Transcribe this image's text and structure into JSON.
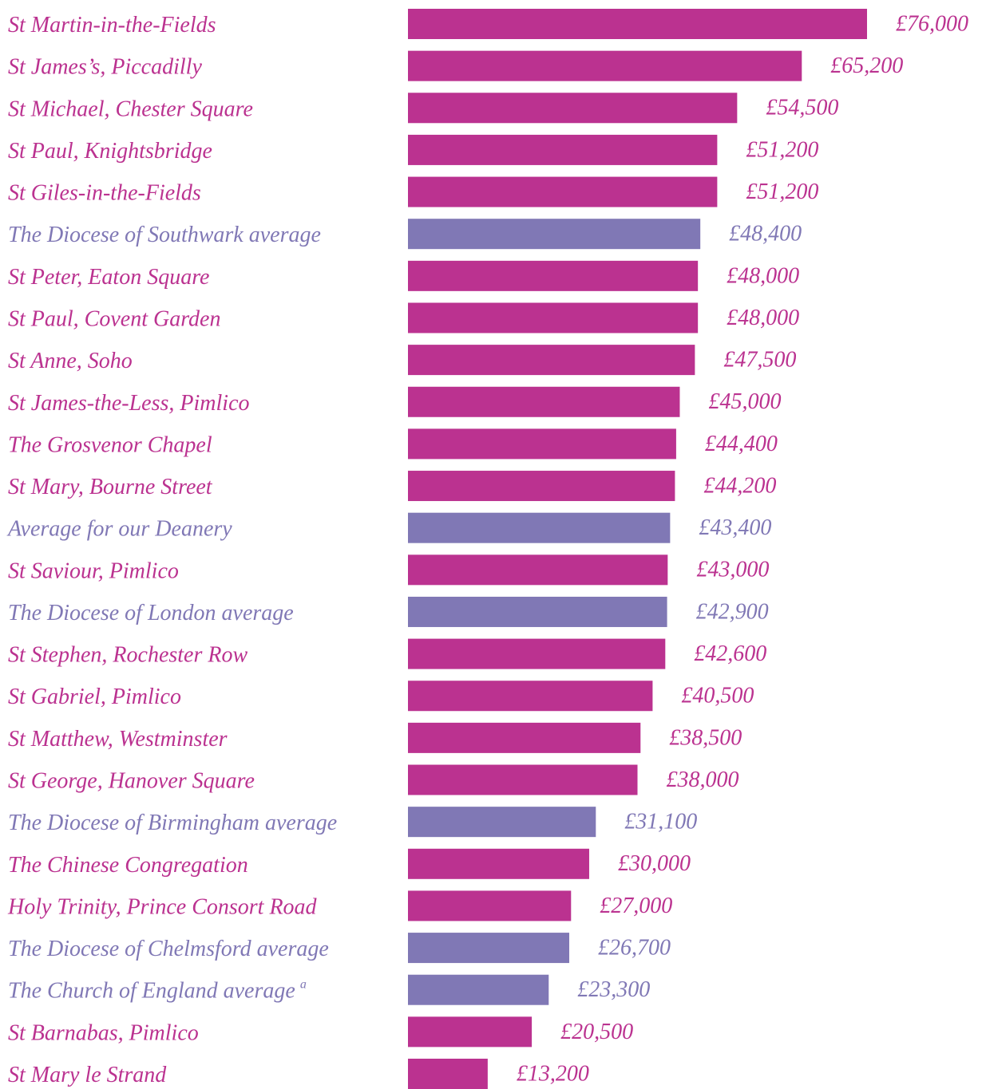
{
  "chart_data": {
    "type": "hbar",
    "categories": [
      "St Martin-in-the-Fields",
      "St James’s, Piccadilly",
      "St Michael, Chester Square",
      "St Paul, Knightsbridge",
      "St Giles-in-the-Fields",
      "The Diocese of Southwark average",
      "St Peter, Eaton Square",
      "St Paul, Covent Garden",
      "St Anne, Soho",
      "St James-the-Less, Pimlico",
      "The Grosvenor Chapel",
      "St Mary, Bourne Street",
      "Average for our Deanery",
      "St Saviour, Pimlico",
      "The Diocese of London average",
      "St Stephen, Rochester Row",
      "St Gabriel, Pimlico",
      "St Matthew, Westminster",
      "St George, Hanover Square",
      "The Diocese of Birmingham average",
      "The Chinese Congregation",
      "Holy Trinity, Prince Consort Road",
      "The Diocese of Chelmsford average",
      "The Church of England average",
      "St Barnabas, Pimlico",
      "St Mary le Strand"
    ],
    "category_notes": [
      null,
      null,
      null,
      null,
      null,
      null,
      null,
      null,
      null,
      null,
      null,
      null,
      null,
      null,
      null,
      null,
      null,
      null,
      null,
      null,
      null,
      null,
      null,
      "a",
      null,
      null
    ],
    "values": [
      76000,
      65200,
      54500,
      51200,
      51200,
      48400,
      48000,
      48000,
      47500,
      45000,
      44400,
      44200,
      43400,
      43000,
      42900,
      42600,
      40500,
      38500,
      38000,
      31100,
      30000,
      27000,
      26700,
      23300,
      20500,
      13200
    ],
    "value_labels": [
      "£76,000",
      "£65,200",
      "£54,500",
      "£51,200",
      "£51,200",
      "£48,400",
      "£48,000",
      "£48,000",
      "£47,500",
      "£45,000",
      "£44,400",
      "£44,200",
      "£43,400",
      "£43,000",
      "£42,900",
      "£42,600",
      "£40,500",
      "£38,500",
      "£38,000",
      "£31,100",
      "£30,000",
      "£27,000",
      "£26,700",
      "£23,300",
      "£20,500",
      "£13,200"
    ],
    "colors": [
      "#bb3290",
      "#bb3290",
      "#bb3290",
      "#bb3290",
      "#bb3290",
      "#8078b5",
      "#bb3290",
      "#bb3290",
      "#bb3290",
      "#bb3290",
      "#bb3290",
      "#bb3290",
      "#8078b5",
      "#bb3290",
      "#8078b5",
      "#bb3290",
      "#bb3290",
      "#bb3290",
      "#bb3290",
      "#8078b5",
      "#bb3290",
      "#bb3290",
      "#8078b5",
      "#8078b5",
      "#bb3290",
      "#bb3290"
    ],
    "xlim": [
      0,
      76000
    ]
  }
}
